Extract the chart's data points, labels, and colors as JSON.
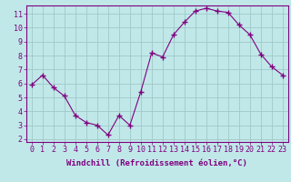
{
  "x": [
    0,
    1,
    2,
    3,
    4,
    5,
    6,
    7,
    8,
    9,
    10,
    11,
    12,
    13,
    14,
    15,
    16,
    17,
    18,
    19,
    20,
    21,
    22,
    23
  ],
  "y": [
    5.9,
    6.6,
    5.7,
    5.1,
    3.7,
    3.2,
    3.0,
    2.3,
    3.7,
    3.0,
    5.4,
    8.2,
    7.9,
    9.5,
    10.4,
    11.2,
    11.4,
    11.2,
    11.1,
    10.2,
    9.5,
    8.1,
    7.2,
    6.6
  ],
  "line_color": "#800080",
  "marker": "+",
  "marker_size": 5,
  "bg_color": "#c0e8e8",
  "grid_color": "#a0c8c8",
  "xlabel": "Windchill (Refroidissement éolien,°C)",
  "xlim": [
    -0.5,
    23.5
  ],
  "ylim": [
    1.8,
    11.6
  ],
  "yticks": [
    2,
    3,
    4,
    5,
    6,
    7,
    8,
    9,
    10,
    11
  ],
  "xticks": [
    0,
    1,
    2,
    3,
    4,
    5,
    6,
    7,
    8,
    9,
    10,
    11,
    12,
    13,
    14,
    15,
    16,
    17,
    18,
    19,
    20,
    21,
    22,
    23
  ],
  "tick_label_color": "#800080",
  "axis_color": "#800080",
  "label_fontsize": 6.5,
  "tick_fontsize": 6,
  "marker_color": "#800080"
}
